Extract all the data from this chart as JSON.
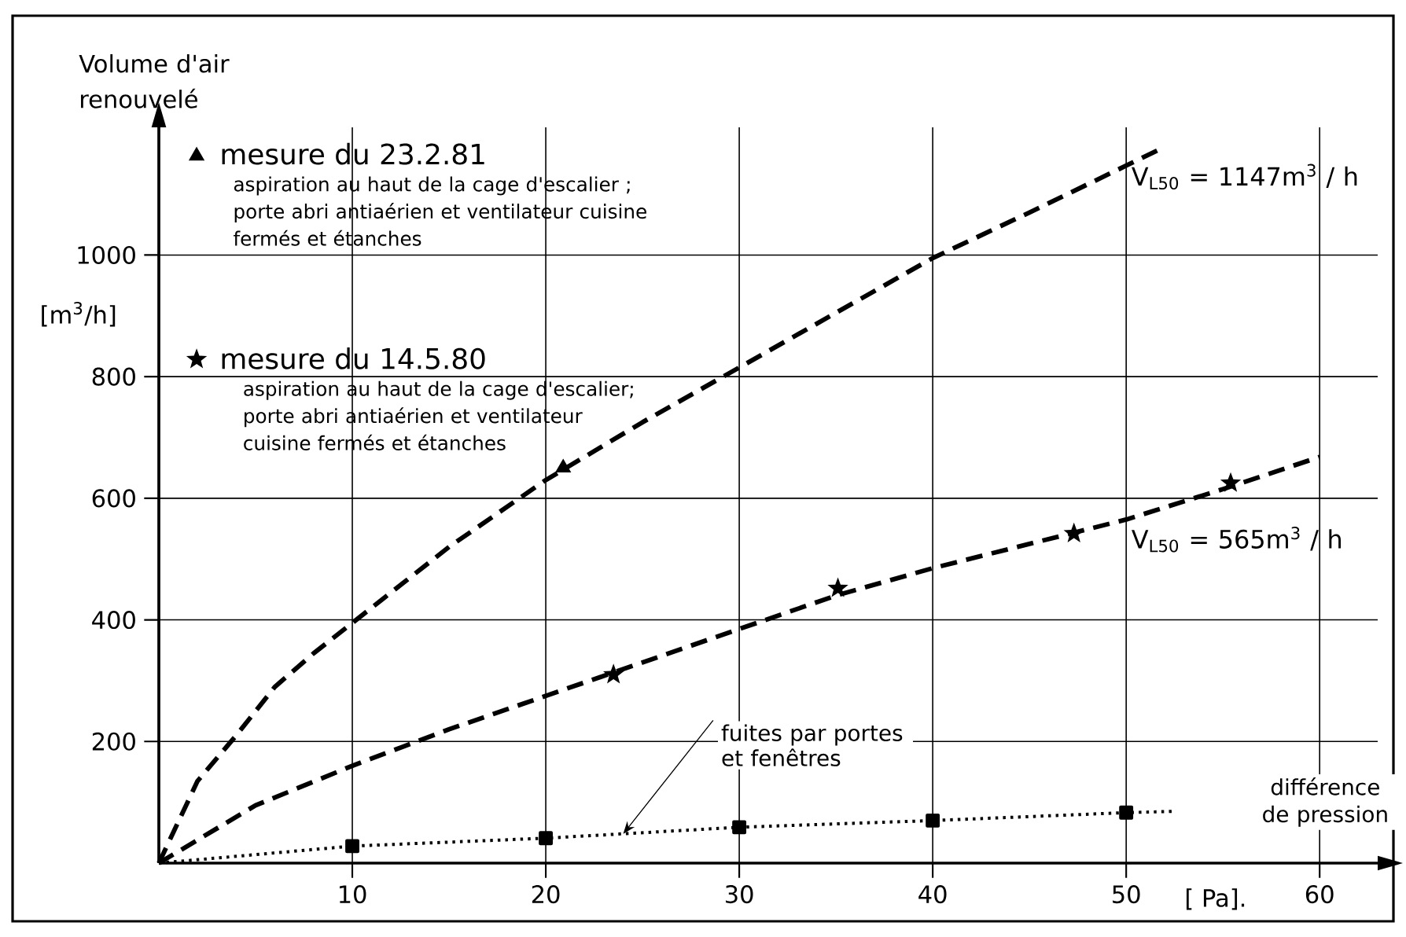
{
  "chart_data": {
    "type": "line",
    "ylabel": "Volume d'air renouvelé",
    "xlabel": "différence de pression",
    "xlim": [
      0,
      63
    ],
    "ylim": [
      0,
      1210
    ],
    "xticks": [
      10,
      20,
      30,
      40,
      50,
      60
    ],
    "yticks": [
      200,
      400,
      600,
      800,
      1000
    ],
    "grid": true,
    "legend": "top left",
    "series": [
      {
        "color": "#000000",
        "line_style": "dashed",
        "marker": "none",
        "x": [
          0,
          2,
          4,
          6,
          8,
          10,
          15,
          20,
          25,
          30,
          35,
          40,
          45,
          50,
          51.8
        ],
        "values": [
          0,
          135,
          210,
          290,
          345,
          395,
          520,
          630,
          725,
          815,
          905,
          995,
          1070,
          1147,
          1175
        ]
      },
      {
        "type": "scatter",
        "name": "mesure du 23.2.81",
        "color": "#000000",
        "marker": "triangle",
        "x": [
          20.9
        ],
        "values": [
          650
        ]
      },
      {
        "color": "#000000",
        "line_style": "dashed",
        "marker": "none",
        "x": [
          0,
          5,
          10,
          15,
          20,
          25,
          30,
          35,
          40,
          45,
          50,
          55,
          60
        ],
        "values": [
          0,
          95,
          160,
          220,
          275,
          330,
          385,
          440,
          485,
          525,
          565,
          615,
          668
        ]
      },
      {
        "type": "scatter",
        "name": "mesure du 14.5.80",
        "color": "#000000",
        "marker": "star",
        "x": [
          23.5,
          35.1,
          47.3,
          55.4
        ],
        "values": [
          310,
          452,
          542,
          625
        ]
      },
      {
        "color": "#000000",
        "line_style": "dotted",
        "marker": "square",
        "x": [
          0,
          10,
          20,
          30,
          40,
          50,
          52.4
        ],
        "values": [
          0,
          28,
          41,
          59,
          70,
          83,
          85
        ]
      }
    ],
    "annotations": [
      "aspiration au haut de la cage d'escalier ; porte abri antiaérien et ventilateur cuisine fermés et étanches",
      "aspiration au haut de la cage d'escalier; porte abri antiaérien et ventilateur cuisine fermés et étanches",
      "[m$^{3}$/h]",
      "[ Pa].",
      "V$_{L50}$ = 1147m$^{3}$ / h",
      "V$_{L50}$ = 565m$^{3}$ / h",
      {
        "text": "fuites par portes et fenêtres",
        "x": 24,
        "y": 48
      }
    ]
  }
}
